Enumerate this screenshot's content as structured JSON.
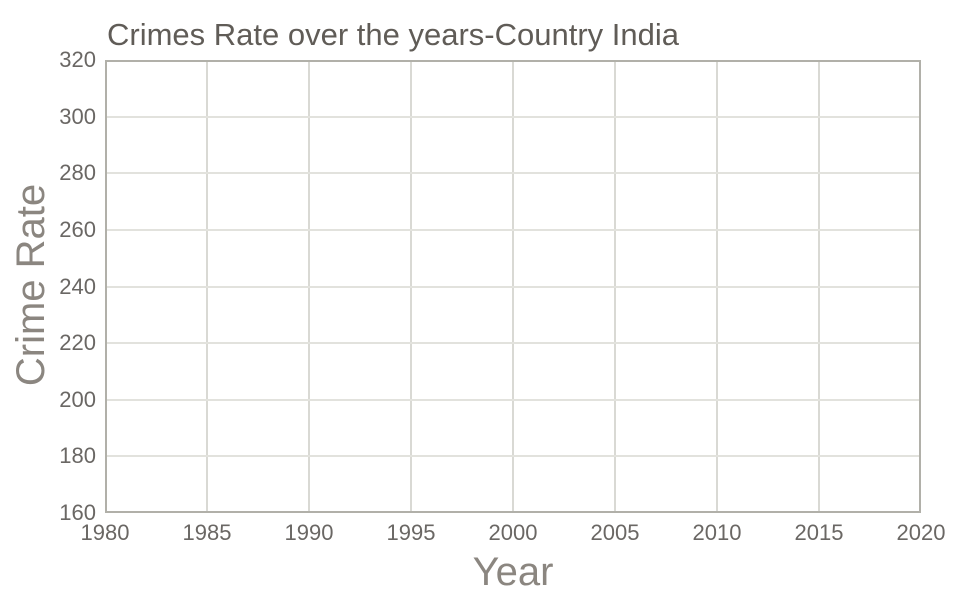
{
  "chart_data": {
    "type": "line",
    "title": "Crimes Rate over the years-Country India",
    "xlabel": "Year",
    "ylabel": "Crime Rate",
    "xlim": [
      1980,
      2020
    ],
    "ylim": [
      160,
      320
    ],
    "x_ticks": [
      1980,
      1985,
      1990,
      1995,
      2000,
      2005,
      2010,
      2015,
      2020
    ],
    "y_ticks": [
      160,
      180,
      200,
      220,
      240,
      260,
      280,
      300,
      320
    ],
    "grid": true,
    "legend": false,
    "series": []
  },
  "colors": {
    "background": "#ffffff",
    "plot_border": "#b1b0a9",
    "gridline_horizontal": "#e2e2dd",
    "gridline_vertical": "#d9d9d4",
    "title_text": "#605c57",
    "tick_text": "#6a6764",
    "axis_title_text": "#8b8680"
  }
}
